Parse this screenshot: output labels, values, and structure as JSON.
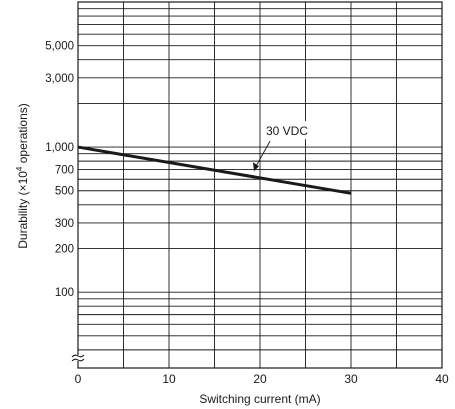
{
  "chart_data": {
    "type": "line",
    "xlabel": "Switching current (mA)",
    "ylabel_prefix": "Durability (×10",
    "ylabel_exp": "4",
    "ylabel_suffix": " operations)",
    "x_scale": "linear",
    "y_scale": "log",
    "xlim": [
      0,
      40
    ],
    "ylim": [
      30,
      10000
    ],
    "x_ticks": [
      {
        "value": 0,
        "label": "0"
      },
      {
        "value": 10,
        "label": "10"
      },
      {
        "value": 20,
        "label": "20"
      },
      {
        "value": 30,
        "label": "30"
      },
      {
        "value": 40,
        "label": "40"
      }
    ],
    "x_grid": [
      5,
      10,
      15,
      20,
      25,
      30,
      35
    ],
    "y_ticks": [
      {
        "value": 5000,
        "label": "5,000"
      },
      {
        "value": 3000,
        "label": "3,000"
      },
      {
        "value": 1000,
        "label": "1,000"
      },
      {
        "value": 700,
        "label": "700"
      },
      {
        "value": 500,
        "label": "500"
      },
      {
        "value": 300,
        "label": "300"
      },
      {
        "value": 200,
        "label": "200"
      },
      {
        "value": 100,
        "label": "100"
      }
    ],
    "y_grid": [
      30,
      40,
      50,
      60,
      70,
      80,
      90,
      100,
      200,
      300,
      400,
      500,
      600,
      700,
      800,
      900,
      1000,
      2000,
      3000,
      4000,
      5000,
      6000,
      7000,
      8000,
      9000,
      10000
    ],
    "axis_break": true,
    "grid": true,
    "series": [
      {
        "name": "30 VDC",
        "x": [
          0,
          30
        ],
        "y": [
          1000,
          480
        ],
        "annotation_point": {
          "x": 20,
          "y": 640
        },
        "label_position": "above"
      }
    ]
  }
}
